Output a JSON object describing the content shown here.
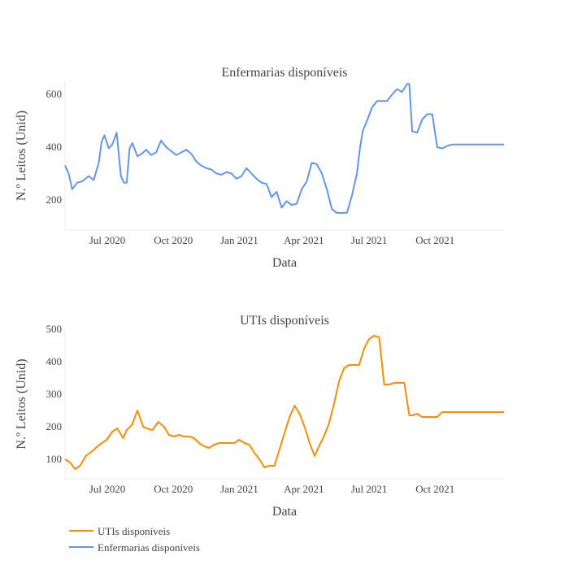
{
  "chart_data": [
    {
      "type": "line",
      "title": "Enfermarias disponíveis",
      "xlabel": "Data",
      "ylabel": "N.º Leitos (Unid)",
      "yticks": [
        200,
        400,
        600
      ],
      "ylim": [
        85,
        650
      ],
      "xlim": [
        "2020-05-03",
        "2022-01-05"
      ],
      "xticks": [
        "2020-07-01",
        "2020-10-01",
        "2021-01-01",
        "2021-04-01",
        "2021-07-01",
        "2021-10-01"
      ],
      "xtick_labels": [
        "Jul 2020",
        "Oct 2020",
        "Jan 2021",
        "Apr 2021",
        "Jul 2021",
        "Oct 2021"
      ],
      "series": [
        {
          "name": "Enfermarias disponíveis",
          "color": "#6495ed",
          "x": [
            "2020-05-03",
            "2020-05-08",
            "2020-05-13",
            "2020-05-20",
            "2020-05-27",
            "2020-06-05",
            "2020-06-12",
            "2020-06-19",
            "2020-06-23",
            "2020-06-27",
            "2020-07-03",
            "2020-07-08",
            "2020-07-14",
            "2020-07-20",
            "2020-07-24",
            "2020-07-28",
            "2020-08-01",
            "2020-08-05",
            "2020-08-12",
            "2020-08-18",
            "2020-08-24",
            "2020-08-31",
            "2020-09-07",
            "2020-09-14",
            "2020-09-21",
            "2020-09-28",
            "2020-10-05",
            "2020-10-12",
            "2020-10-19",
            "2020-10-26",
            "2020-11-02",
            "2020-11-09",
            "2020-11-16",
            "2020-11-23",
            "2020-11-30",
            "2020-12-07",
            "2020-12-14",
            "2020-12-21",
            "2020-12-28",
            "2021-01-04",
            "2021-01-11",
            "2021-01-18",
            "2021-01-25",
            "2021-02-01",
            "2021-02-08",
            "2021-02-15",
            "2021-02-22",
            "2021-03-01",
            "2021-03-08",
            "2021-03-15",
            "2021-03-22",
            "2021-03-29",
            "2021-04-05",
            "2021-04-12",
            "2021-04-19",
            "2021-04-26",
            "2021-05-03",
            "2021-05-10",
            "2021-05-17",
            "2021-05-24",
            "2021-05-31",
            "2021-06-07",
            "2021-06-14",
            "2021-06-18",
            "2021-06-22",
            "2021-06-28",
            "2021-07-05",
            "2021-07-12",
            "2021-07-19",
            "2021-07-26",
            "2021-08-02",
            "2021-08-09",
            "2021-08-16",
            "2021-08-23",
            "2021-08-26",
            "2021-08-30",
            "2021-09-06",
            "2021-09-13",
            "2021-09-20",
            "2021-09-27",
            "2021-10-04",
            "2021-10-11",
            "2021-10-18",
            "2021-10-25",
            "2021-11-08",
            "2021-11-22",
            "2021-12-06",
            "2021-12-20",
            "2022-01-05"
          ],
          "y": [
            330,
            300,
            240,
            265,
            270,
            290,
            275,
            340,
            420,
            445,
            395,
            410,
            455,
            290,
            265,
            265,
            395,
            415,
            365,
            375,
            390,
            370,
            380,
            425,
            400,
            385,
            370,
            380,
            390,
            375,
            345,
            330,
            320,
            315,
            300,
            295,
            305,
            300,
            280,
            290,
            320,
            300,
            280,
            265,
            260,
            210,
            230,
            170,
            195,
            180,
            185,
            240,
            270,
            340,
            335,
            300,
            240,
            165,
            150,
            150,
            150,
            215,
            300,
            390,
            460,
            500,
            550,
            575,
            575,
            575,
            600,
            620,
            610,
            640,
            640,
            460,
            455,
            505,
            525,
            525,
            400,
            395,
            405,
            410,
            410,
            410,
            410,
            410,
            410
          ]
        }
      ]
    },
    {
      "type": "line",
      "title": "UTIs disponíveis",
      "xlabel": "Data",
      "ylabel": "N.º Leitos (Unid)",
      "yticks": [
        100,
        200,
        300,
        400,
        500
      ],
      "ylim": [
        40,
        500
      ],
      "xlim": [
        "2020-05-03",
        "2022-01-05"
      ],
      "xticks": [
        "2020-07-01",
        "2020-10-01",
        "2021-01-01",
        "2021-04-01",
        "2021-07-01",
        "2021-10-01"
      ],
      "xtick_labels": [
        "Jul 2020",
        "Oct 2020",
        "Jan 2021",
        "Apr 2021",
        "Jul 2021",
        "Oct 2021"
      ],
      "series": [
        {
          "name": "UTIs disponíveis",
          "color": "#ff8c00",
          "x": [
            "2020-05-03",
            "2020-05-10",
            "2020-05-17",
            "2020-05-24",
            "2020-06-01",
            "2020-06-10",
            "2020-06-20",
            "2020-06-30",
            "2020-07-08",
            "2020-07-15",
            "2020-07-23",
            "2020-07-28",
            "2020-08-04",
            "2020-08-12",
            "2020-08-20",
            "2020-08-25",
            "2020-09-02",
            "2020-09-10",
            "2020-09-18",
            "2020-09-25",
            "2020-10-02",
            "2020-10-09",
            "2020-10-16",
            "2020-10-23",
            "2020-10-30",
            "2020-11-06",
            "2020-11-13",
            "2020-11-20",
            "2020-11-27",
            "2020-12-04",
            "2020-12-11",
            "2020-12-18",
            "2020-12-25",
            "2021-01-01",
            "2021-01-08",
            "2021-01-15",
            "2021-01-22",
            "2021-01-29",
            "2021-02-05",
            "2021-02-12",
            "2021-02-19",
            "2021-02-26",
            "2021-03-05",
            "2021-03-12",
            "2021-03-19",
            "2021-03-26",
            "2021-04-02",
            "2021-04-09",
            "2021-04-16",
            "2021-04-22",
            "2021-04-29",
            "2021-05-06",
            "2021-05-13",
            "2021-05-20",
            "2021-05-27",
            "2021-06-03",
            "2021-06-10",
            "2021-06-17",
            "2021-06-24",
            "2021-07-01",
            "2021-07-08",
            "2021-07-15",
            "2021-07-22",
            "2021-07-29",
            "2021-08-05",
            "2021-08-12",
            "2021-08-19",
            "2021-08-26",
            "2021-08-30",
            "2021-09-06",
            "2021-09-13",
            "2021-09-20",
            "2021-09-27",
            "2021-10-04",
            "2021-10-11",
            "2021-10-18",
            "2021-10-25",
            "2021-11-01",
            "2021-11-15",
            "2021-11-29",
            "2021-12-06",
            "2021-12-20",
            "2022-01-05"
          ],
          "y": [
            100,
            90,
            70,
            80,
            110,
            125,
            145,
            160,
            185,
            195,
            165,
            190,
            205,
            250,
            200,
            195,
            190,
            215,
            200,
            175,
            170,
            175,
            170,
            170,
            165,
            150,
            140,
            135,
            145,
            150,
            150,
            150,
            150,
            160,
            150,
            145,
            120,
            100,
            75,
            80,
            80,
            130,
            180,
            230,
            265,
            240,
            200,
            150,
            110,
            140,
            170,
            210,
            270,
            340,
            380,
            390,
            390,
            390,
            440,
            470,
            480,
            475,
            330,
            330,
            335,
            335,
            335,
            235,
            235,
            240,
            230,
            230,
            230,
            230,
            245,
            245,
            245,
            245,
            245,
            245,
            245,
            245,
            245
          ]
        }
      ]
    }
  ],
  "legend": {
    "position": "bottom-left",
    "items": [
      {
        "label": "UTIs disponíveis",
        "color": "#ff8c00"
      },
      {
        "label": "Enfermarias disponíveis",
        "color": "#6495ed"
      }
    ]
  }
}
